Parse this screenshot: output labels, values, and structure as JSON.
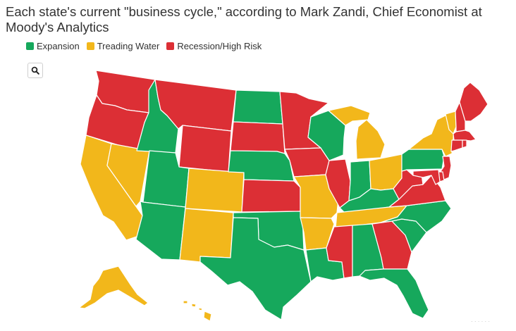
{
  "title": "Each state's current \"business cycle,\" according to Mark Zandi, Chief Economist at Moody's Analytics",
  "legend": [
    {
      "label": "Expansion",
      "color": "#16a85c"
    },
    {
      "label": "Treading Water",
      "color": "#f2b71b"
    },
    {
      "label": "Recession/High Risk",
      "color": "#dc2f35"
    }
  ],
  "colors": {
    "expansion": "#16a85c",
    "treading": "#f2b71b",
    "recession": "#dc2f35"
  },
  "search": {
    "icon": "search-icon"
  },
  "footer": {
    "mark": "· · · · · ·"
  },
  "states": {
    "WA": "recession",
    "OR": "recession",
    "CA": "treading",
    "NV": "treading",
    "ID": "expansion",
    "MT": "recession",
    "WY": "recession",
    "UT": "expansion",
    "AZ": "expansion",
    "CO": "treading",
    "NM": "treading",
    "ND": "expansion",
    "SD": "recession",
    "NE": "expansion",
    "KS": "recession",
    "OK": "expansion",
    "TX": "expansion",
    "MN": "recession",
    "IA": "recession",
    "MO": "treading",
    "AR": "treading",
    "LA": "expansion",
    "WI": "expansion",
    "IL": "recession",
    "MI": "treading",
    "IN": "expansion",
    "OH": "treading",
    "KY": "expansion",
    "TN": "treading",
    "MS": "recession",
    "AL": "expansion",
    "GA": "recession",
    "FL": "expansion",
    "SC": "expansion",
    "NC": "expansion",
    "VA": "recession",
    "WV": "recession",
    "PA": "expansion",
    "NY": "treading",
    "VT": "treading",
    "NH": "recession",
    "ME": "recession",
    "MA": "recession",
    "CT": "recession",
    "RI": "recession",
    "NJ": "recession",
    "DE": "recession",
    "MD": "recession",
    "AK": "treading",
    "HI": "treading"
  }
}
